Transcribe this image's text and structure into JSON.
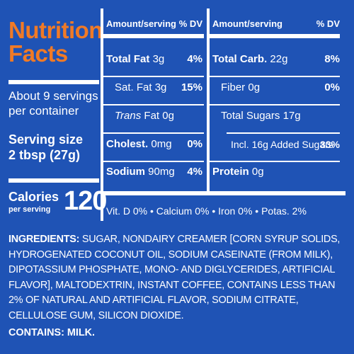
{
  "title_line1": "Nutrition",
  "title_line2": "Facts",
  "servings_line1": "About 9 servings",
  "servings_line2": "per container",
  "serving_size_label": "Serving size",
  "serving_size_value": "2 tbsp (27g)",
  "calories_label": "Calories",
  "calories_sublabel": "per serving",
  "calories_value": "120",
  "table_header": {
    "amount_label": "Amount/serving",
    "dv_label": "% DV"
  },
  "left_rows": [
    {
      "name": "Total Fat",
      "amount": "3g",
      "dv": "4%"
    },
    {
      "name": "Sat. Fat",
      "amount": "3g",
      "dv": "15%"
    },
    {
      "name": "Trans",
      "name_suffix": "Fat",
      "amount": "0g",
      "dv": ""
    },
    {
      "name": "Cholest.",
      "amount": "0mg",
      "dv": "0%"
    },
    {
      "name": "Sodium",
      "amount": "90mg",
      "dv": "4%"
    }
  ],
  "right_rows": [
    {
      "name": "Total Carb.",
      "amount": "22g",
      "dv": "8%"
    },
    {
      "name": "Fiber",
      "amount": "0g",
      "dv": "0%"
    },
    {
      "name": "Total Sugars",
      "amount": "17g",
      "dv": ""
    },
    {
      "name": "Incl. 16g Added Sugars",
      "amount": "",
      "dv": "33%"
    },
    {
      "name": "Protein",
      "amount": "0g",
      "dv": ""
    }
  ],
  "vitamins_line": "Vit. D 0% • Calcium 0% • Iron 0% • Potas. 2%",
  "ingredients_label": "INGREDIENTS:",
  "ingredients_text": "SUGAR, NONDAIRY CREAMER [CORN SYRUP SOLIDS, HYDROGENATED COCONUT OIL, SODIUM CASEINATE (FROM MILK), DIPOTASSIUM PHOSPHATE, MONO- AND DIGLYCERIDES, ARTIFICIAL FLAVOR], MALTODEXTRIN, INSTANT COFFEE, CONTAINS LESS THAN 2% OF NATURAL AND ARTIFICIAL FLAVOR, SODIUM CITRATE, CELLULOSE GUM, SILICON DIOXIDE.",
  "contains_label": "CONTAINS: MILK.",
  "colors": {
    "background": "#1f53b5",
    "title": "#f07a26",
    "text": "#ffffff"
  }
}
